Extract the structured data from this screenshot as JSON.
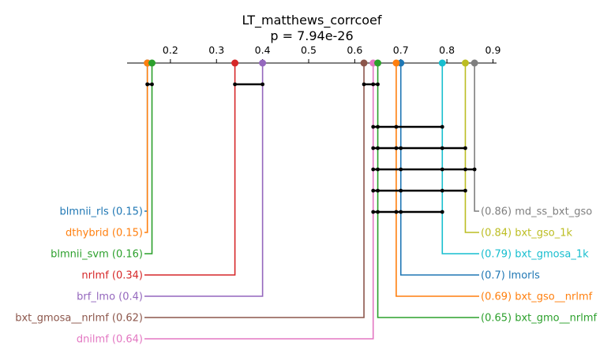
{
  "chart_data": {
    "type": "critical_difference_diagram",
    "title": "LT_matthews_corrcoef",
    "subtitle": "p = 7.94e-26",
    "axis": {
      "range": [
        0.1,
        0.9
      ],
      "ticks": [
        0.2,
        0.3,
        0.4,
        0.5,
        0.6,
        0.7,
        0.8,
        0.9
      ],
      "tick_labels": [
        "0.2",
        "0.3",
        "0.4",
        "0.5",
        "0.6",
        "0.7",
        "0.8",
        "0.9"
      ]
    },
    "methods": [
      {
        "name": "blmnii_rls",
        "score": 0.15,
        "label": "blmnii_rls (0.15)",
        "color": "#1f77b4",
        "side": "left"
      },
      {
        "name": "dthybrid",
        "score": 0.15,
        "label": "dthybrid (0.15)",
        "color": "#ff7f0e",
        "side": "left"
      },
      {
        "name": "blmnii_svm",
        "score": 0.16,
        "label": "blmnii_svm (0.16)",
        "color": "#2ca02c",
        "side": "left"
      },
      {
        "name": "nrlmf",
        "score": 0.34,
        "label": "nrlmf (0.34)",
        "color": "#d62728",
        "side": "left"
      },
      {
        "name": "brf_lmo",
        "score": 0.4,
        "label": "brf_lmo (0.4)",
        "color": "#9467bd",
        "side": "left"
      },
      {
        "name": "bxt_gmosa__nrlmf",
        "score": 0.62,
        "label": "bxt_gmosa__nrlmf (0.62)",
        "color": "#8c564b",
        "side": "left"
      },
      {
        "name": "dnilmf",
        "score": 0.64,
        "label": "dnilmf (0.64)",
        "color": "#e377c2",
        "side": "left"
      },
      {
        "name": "md_ss_bxt_gso",
        "score": 0.86,
        "label": "(0.86) md_ss_bxt_gso",
        "color": "#7f7f7f",
        "side": "right"
      },
      {
        "name": "bxt_gso_1k",
        "score": 0.84,
        "label": "(0.84) bxt_gso_1k",
        "color": "#bcbd22",
        "side": "right"
      },
      {
        "name": "bxt_gmosa_1k",
        "score": 0.79,
        "label": "(0.79) bxt_gmosa_1k",
        "color": "#17becf",
        "side": "right"
      },
      {
        "name": "lmorls",
        "score": 0.7,
        "label": "(0.7) lmorls",
        "color": "#1f77b4",
        "side": "right"
      },
      {
        "name": "bxt_gso__nrlmf",
        "score": 0.69,
        "label": "(0.69) bxt_gso__nrlmf",
        "color": "#ff7f0e",
        "side": "right"
      },
      {
        "name": "bxt_gmo__nrlmf",
        "score": 0.65,
        "label": "(0.65) bxt_gmo__nrlmf",
        "color": "#2ca02c",
        "side": "right"
      }
    ],
    "cliques": [
      {
        "members": [
          "blmnii_rls",
          "dthybrid",
          "blmnii_svm"
        ],
        "from": 0.15,
        "to": 0.16
      },
      {
        "members": [
          "nrlmf",
          "brf_lmo"
        ],
        "from": 0.34,
        "to": 0.4
      },
      {
        "members": [
          "bxt_gmosa__nrlmf",
          "dnilmf",
          "bxt_gmo__nrlmf"
        ],
        "from": 0.62,
        "to": 0.65
      },
      {
        "members": [
          "dnilmf",
          "bxt_gmo__nrlmf",
          "bxt_gso__nrlmf",
          "bxt_gmosa_1k"
        ],
        "from": 0.64,
        "to": 0.79
      },
      {
        "members": [
          "dnilmf",
          "bxt_gmo__nrlmf",
          "bxt_gso__nrlmf",
          "lmorls",
          "bxt_gmosa_1k",
          "bxt_gso_1k"
        ],
        "from": 0.64,
        "to": 0.84
      },
      {
        "members": [
          "dnilmf",
          "bxt_gmo__nrlmf",
          "lmorls",
          "bxt_gmosa_1k",
          "bxt_gso_1k",
          "md_ss_bxt_gso"
        ],
        "from": 0.64,
        "to": 0.86
      },
      {
        "members": [
          "dnilmf",
          "bxt_gmo__nrlmf",
          "lmorls",
          "bxt_gmosa_1k",
          "bxt_gso_1k"
        ],
        "from": 0.64,
        "to": 0.84
      },
      {
        "members": [
          "dnilmf",
          "bxt_gmo__nrlmf",
          "bxt_gso__nrlmf",
          "lmorls",
          "bxt_gmosa_1k"
        ],
        "from": 0.64,
        "to": 0.79
      }
    ]
  }
}
